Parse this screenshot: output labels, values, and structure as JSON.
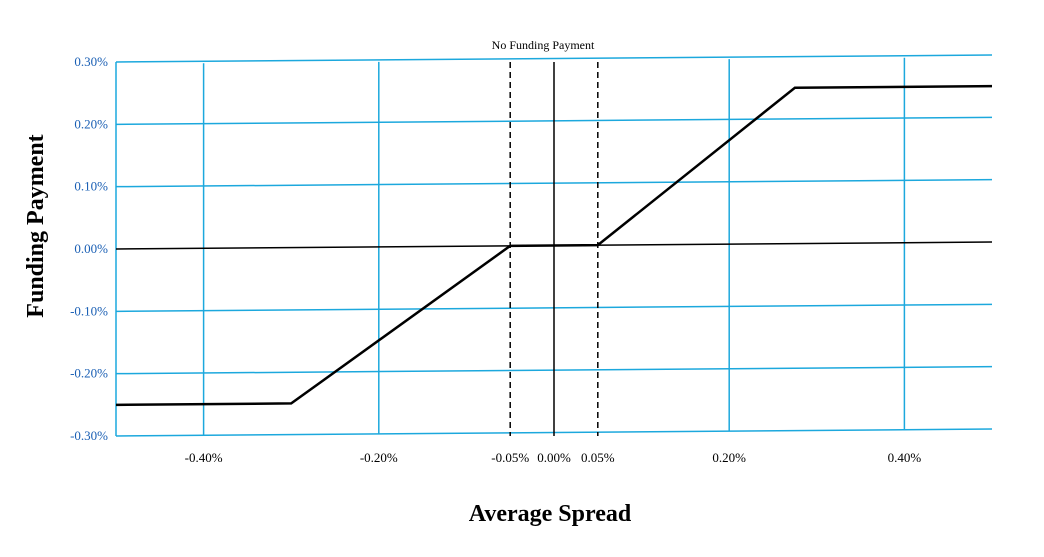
{
  "chart_data": {
    "type": "line",
    "xlabel": "Average Spread",
    "ylabel": "Funding Payment",
    "annotation": "No Funding Payment",
    "xlim": [
      -0.5,
      0.5
    ],
    "ylim": [
      -0.3,
      0.3
    ],
    "grid": true,
    "x_ticks": [
      {
        "value": -0.4,
        "label": "-0.40%"
      },
      {
        "value": -0.2,
        "label": "-0.20%"
      },
      {
        "value": -0.05,
        "label": "-0.05%"
      },
      {
        "value": 0.0,
        "label": "0.00%"
      },
      {
        "value": 0.05,
        "label": "0.05%"
      },
      {
        "value": 0.2,
        "label": "0.20%"
      },
      {
        "value": 0.4,
        "label": "0.40%"
      }
    ],
    "y_ticks": [
      {
        "value": 0.3,
        "label": "0.30%"
      },
      {
        "value": 0.2,
        "label": "0.20%"
      },
      {
        "value": 0.1,
        "label": "0.10%"
      },
      {
        "value": 0.0,
        "label": "0.00%"
      },
      {
        "value": -0.1,
        "label": "-0.10%"
      },
      {
        "value": -0.2,
        "label": "-0.20%"
      },
      {
        "value": -0.3,
        "label": "-0.30%"
      }
    ],
    "x_gridlines": [
      -0.4,
      -0.2,
      0.2,
      0.4
    ],
    "dashed_lines_x": [
      -0.05,
      0.05
    ],
    "series": [
      {
        "x": [
          -0.5,
          -0.3,
          -0.05,
          0.05,
          0.275,
          0.5
        ],
        "y": [
          -0.25,
          -0.25,
          0.0,
          0.0,
          0.25,
          0.25
        ]
      }
    ],
    "colors": {
      "grid": "#1ca8dd",
      "line": "#000000",
      "y_tick_text": "#1a5fb4"
    }
  }
}
